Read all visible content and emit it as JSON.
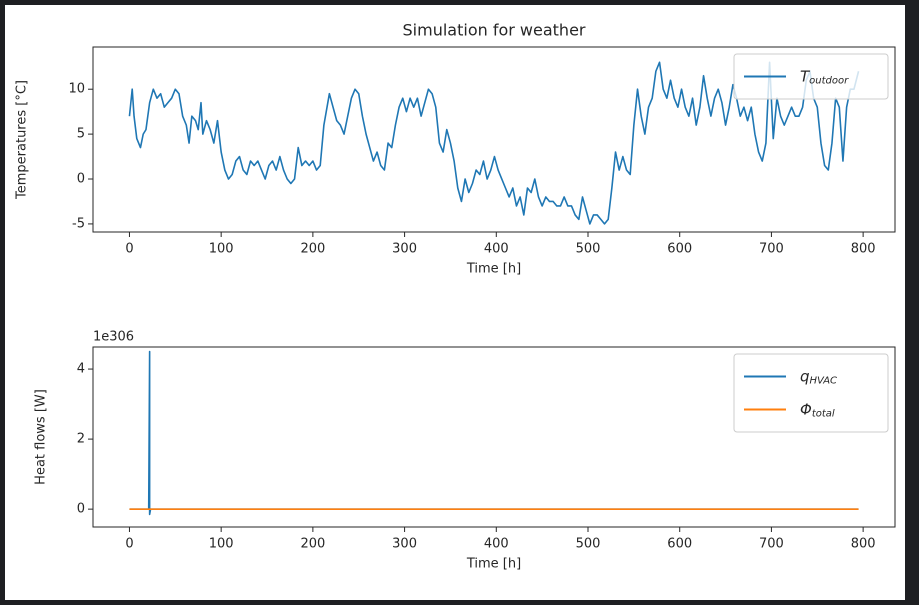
{
  "chart_data": [
    {
      "type": "line",
      "title": "Simulation for weather",
      "xlabel": "Time [h]",
      "ylabel": "Temperatures [°C]",
      "xlim": [
        -39.75,
        834.75
      ],
      "ylim": [
        -5.9,
        14.7
      ],
      "xticks": [
        0,
        100,
        200,
        300,
        400,
        500,
        600,
        700,
        800
      ],
      "yticks": [
        -5,
        0,
        5,
        10
      ],
      "legend": "upper right",
      "x": [
        0,
        3,
        5,
        8,
        12,
        15,
        18,
        22,
        26,
        30,
        34,
        38,
        42,
        46,
        50,
        54,
        58,
        62,
        65,
        68,
        72,
        75,
        78,
        80,
        84,
        88,
        92,
        96,
        100,
        104,
        108,
        112,
        116,
        120,
        124,
        128,
        132,
        136,
        140,
        144,
        148,
        152,
        156,
        160,
        164,
        168,
        172,
        176,
        180,
        184,
        188,
        192,
        196,
        200,
        204,
        208,
        212,
        218,
        222,
        226,
        230,
        234,
        238,
        242,
        246,
        250,
        254,
        258,
        262,
        266,
        270,
        274,
        278,
        282,
        286,
        290,
        294,
        298,
        302,
        306,
        310,
        314,
        318,
        322,
        326,
        330,
        334,
        338,
        342,
        346,
        350,
        354,
        358,
        362,
        366,
        370,
        374,
        378,
        382,
        386,
        390,
        394,
        398,
        402,
        406,
        410,
        414,
        418,
        422,
        426,
        430,
        434,
        438,
        442,
        446,
        450,
        454,
        458,
        462,
        466,
        470,
        474,
        478,
        482,
        486,
        490,
        494,
        498,
        502,
        506,
        510,
        514,
        518,
        522,
        526,
        530,
        534,
        538,
        542,
        546,
        550,
        554,
        558,
        562,
        566,
        570,
        574,
        578,
        582,
        586,
        590,
        594,
        598,
        602,
        606,
        610,
        614,
        618,
        622,
        626,
        630,
        634,
        638,
        642,
        646,
        650,
        654,
        658,
        662,
        666,
        670,
        674,
        678,
        682,
        686,
        690,
        694,
        698,
        702,
        706,
        710,
        714,
        718,
        722,
        726,
        730,
        734,
        738,
        742,
        746,
        750,
        754,
        758,
        762,
        766,
        770,
        774,
        778,
        782,
        786,
        790,
        795
      ],
      "series": [
        {
          "name": "T",
          "subscript": "outdoor",
          "color": "#1f77b4",
          "values": [
            7,
            10,
            7,
            4.5,
            3.5,
            5,
            5.5,
            8.5,
            10,
            9,
            9.5,
            8,
            8.5,
            9,
            10,
            9.5,
            7,
            6,
            4,
            7,
            6.5,
            5.5,
            8.5,
            5,
            6.5,
            5.5,
            4,
            6.5,
            3,
            1,
            0,
            0.5,
            2,
            2.5,
            1,
            0.5,
            2,
            1.5,
            2,
            1,
            0,
            1.5,
            2,
            1,
            2.5,
            1,
            0,
            -0.5,
            0,
            3.5,
            1.5,
            2,
            1.5,
            2,
            1,
            1.5,
            6,
            9.5,
            8,
            6.5,
            6,
            5,
            7,
            9,
            10,
            9.5,
            7,
            5,
            3.5,
            2,
            3,
            1.5,
            1,
            4,
            3.5,
            6,
            8,
            9,
            7.5,
            9,
            8,
            9,
            7,
            8.5,
            10,
            9.5,
            8,
            4,
            3,
            5.5,
            4,
            2,
            -1,
            -2.5,
            0,
            -1.5,
            -0.5,
            1,
            0.5,
            2,
            0,
            1,
            2.5,
            1,
            0,
            -1,
            -2,
            -1,
            -3,
            -2,
            -4,
            -1,
            -1.5,
            0,
            -2,
            -3,
            -2,
            -2.5,
            -2.5,
            -3,
            -3,
            -2,
            -3,
            -3,
            -4,
            -4.5,
            -2,
            -3.5,
            -5,
            -4,
            -4,
            -4.5,
            -5,
            -4.5,
            -1,
            3,
            1,
            2.5,
            1,
            0.5,
            6,
            10,
            7,
            5,
            8,
            9,
            12,
            13,
            10,
            9,
            11,
            9,
            8,
            10,
            8,
            7,
            9,
            6,
            8,
            11.5,
            9,
            7,
            9,
            10,
            8.5,
            6,
            8,
            10.5,
            9,
            7,
            8,
            6.5,
            8,
            5,
            3,
            2,
            4,
            13,
            4.5,
            9,
            7,
            6,
            7,
            8,
            7,
            7,
            8,
            11,
            12,
            9,
            8,
            4,
            1.5,
            1,
            4,
            9,
            8,
            2,
            8,
            10,
            10,
            12
          ]
        }
      ]
    },
    {
      "type": "line",
      "xlabel": "Time [h]",
      "ylabel": "Heat flows [W]",
      "offset_label": "1e306",
      "xlim": [
        -39.75,
        834.75
      ],
      "ylim": [
        -0.51,
        4.63
      ],
      "xticks": [
        0,
        100,
        200,
        300,
        400,
        500,
        600,
        700,
        800
      ],
      "yticks": [
        0,
        2,
        4
      ],
      "legend": "upper right",
      "x": [
        0,
        21,
        22,
        22,
        23,
        795
      ],
      "series": [
        {
          "name": "q",
          "subscript": "HVAC",
          "color": "#1f77b4",
          "values": [
            0,
            0,
            4.5,
            -0.15,
            0,
            0
          ]
        },
        {
          "name": "Φ",
          "subscript": "total",
          "color": "#ff7f0e",
          "values": [
            0,
            0,
            0,
            0,
            0,
            0
          ]
        }
      ]
    }
  ]
}
